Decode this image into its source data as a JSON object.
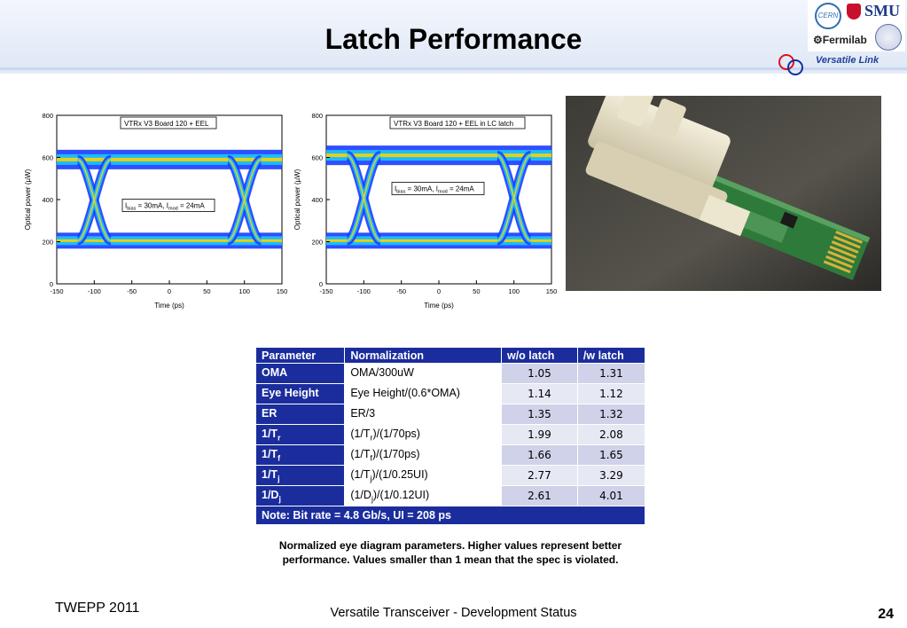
{
  "slide": {
    "title": "Latch Performance",
    "footer_left": "TWEPP 2011",
    "footer_center": "Versatile Transceiver - Development Status",
    "page_number": "24"
  },
  "logos": {
    "cern": "CERN",
    "smu": "SMU",
    "fermilab": "Fermilab",
    "versatile_link": "Versatile Link"
  },
  "eye_diagrams": [
    {
      "label": "VTRx V3 Board 120 + EEL",
      "ylabel": "Optical power (µW)",
      "xlabel": "Time (ps)",
      "y_ticks": [
        "800",
        "600",
        "400",
        "200",
        "0"
      ],
      "x_ticks": [
        "-150",
        "-100",
        "-50",
        "0",
        "50",
        "100",
        "150"
      ],
      "annotation_i": "I",
      "annotation_bias_sub": "bias",
      "annotation_mid": " = 30mA, I",
      "annotation_mod_sub": "mod",
      "annotation_tail": " = 24mA"
    },
    {
      "label": "VTRx V3 Board 120 + EEL in LC latch",
      "ylabel": "Optical power (µW)",
      "xlabel": "Time (ps)",
      "y_ticks": [
        "800",
        "600",
        "400",
        "200",
        "0"
      ],
      "x_ticks": [
        "-150",
        "-100",
        "-50",
        "0",
        "50",
        "100",
        "150"
      ],
      "annotation_i": "I",
      "annotation_bias_sub": "bias",
      "annotation_mid": " = 30mA, I",
      "annotation_mod_sub": "mod",
      "annotation_tail": " = 24mA"
    }
  ],
  "table": {
    "headers": [
      "Parameter",
      "Normalization",
      "w/o latch",
      "/w latch"
    ],
    "rows": [
      {
        "param": "OMA",
        "param_sub": "",
        "norm_a": "OMA/300uW",
        "norm_sub": "",
        "norm_b": "",
        "wo": "1.05",
        "w": "1.31"
      },
      {
        "param": "Eye Height",
        "param_sub": "",
        "norm_a": "Eye Height/(0.6*OMA)",
        "norm_sub": "",
        "norm_b": "",
        "wo": "1.14",
        "w": "1.12"
      },
      {
        "param": "ER",
        "param_sub": "",
        "norm_a": "ER/3",
        "norm_sub": "",
        "norm_b": "",
        "wo": "1.35",
        "w": "1.32"
      },
      {
        "param": "1/T",
        "param_sub": "r",
        "norm_a": "(1/T",
        "norm_sub": "r",
        "norm_b": ")/(1/70ps)",
        "wo": "1.99",
        "w": "2.08"
      },
      {
        "param": "1/T",
        "param_sub": "f",
        "norm_a": "(1/T",
        "norm_sub": "f",
        "norm_b": ")/(1/70ps)",
        "wo": "1.66",
        "w": "1.65"
      },
      {
        "param": "1/T",
        "param_sub": "j",
        "norm_a": "(1/T",
        "norm_sub": "j",
        "norm_b": ")/(1/0.25UI)",
        "wo": "2.77",
        "w": "3.29"
      },
      {
        "param": "1/D",
        "param_sub": "j",
        "norm_a": "(1/D",
        "norm_sub": "j",
        "norm_b": ")/(1/0.12UI)",
        "wo": "2.61",
        "w": "4.01"
      }
    ],
    "note": "Note: Bit rate = 4.8 Gb/s, UI = 208 ps"
  },
  "caption": "Normalized eye diagram parameters. Higher values represent better performance. Values smaller than 1 mean that the spec is violated.",
  "colors": {
    "table_header": "#1b2d9c",
    "eye_outer": "#1a3cff",
    "eye_mid": "#18c8ff",
    "eye_core": "#ffd000",
    "vl_ring_red": "#e01020",
    "vl_ring_blue": "#1030a0"
  }
}
